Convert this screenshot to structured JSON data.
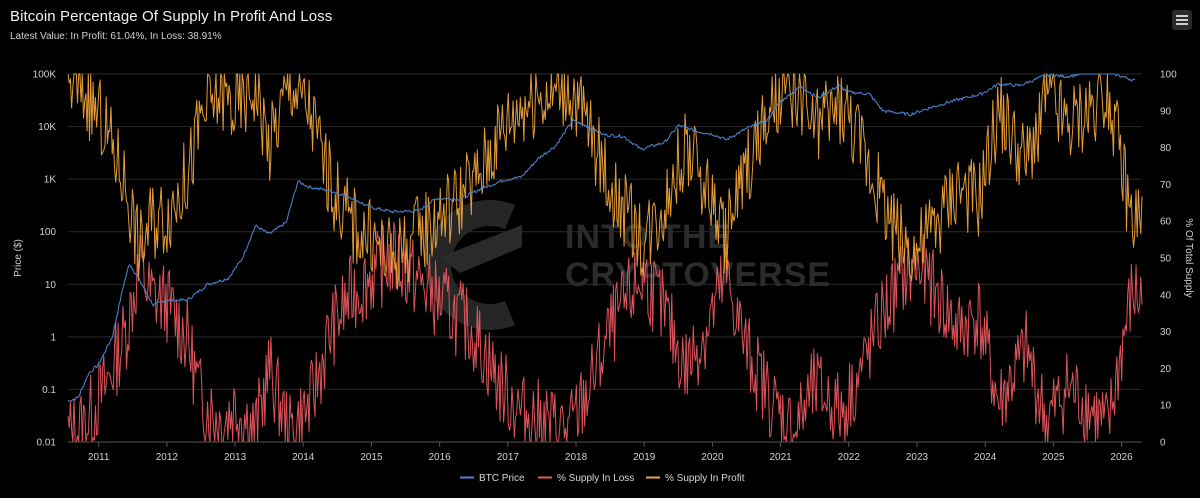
{
  "header": {
    "title": "Bitcoin Percentage Of Supply In Profit And Loss",
    "subtitle": "Latest Value: In Profit: 61.04%, In Loss: 38.91%"
  },
  "watermark": {
    "line1": "INTO THE",
    "line2": "CRYPTOVERSE"
  },
  "colors": {
    "background": "#000000",
    "grid": "#2a2a2a",
    "btc_price": "#4a86d4",
    "supply_in_loss": "#e8575f",
    "supply_in_profit": "#f0a33a"
  },
  "chart_data": {
    "type": "line",
    "title": "Bitcoin Percentage Of Supply In Profit And Loss",
    "subtitle": "Latest Value: In Profit: 61.04%, In Loss: 38.91%",
    "xlabel": "",
    "ylabel_left": "Price ($)",
    "ylabel_right": "% Of Total Supply",
    "x_ticks": [
      "2011",
      "2012",
      "2013",
      "2014",
      "2015",
      "2016",
      "2017",
      "2018",
      "2019",
      "2020",
      "2021",
      "2022",
      "2023",
      "2024",
      "2025",
      "2026"
    ],
    "x_range": [
      2010.55,
      2026.3
    ],
    "y_left": {
      "scale": "log",
      "range": [
        0.01,
        100000
      ],
      "ticks": [
        "0.01",
        "0.1",
        "1",
        "10",
        "100",
        "1K",
        "10K",
        "100K"
      ]
    },
    "y_right": {
      "scale": "linear",
      "range": [
        0,
        100
      ],
      "ticks": [
        "0",
        "10",
        "20",
        "30",
        "40",
        "50",
        "60",
        "70",
        "80",
        "90",
        "100"
      ]
    },
    "grid": true,
    "legend_position": "bottom-center",
    "series": [
      {
        "name": "BTC Price",
        "axis": "left",
        "x": [
          2010.55,
          2010.7,
          2010.85,
          2011.0,
          2011.2,
          2011.35,
          2011.45,
          2011.6,
          2011.8,
          2012.0,
          2012.3,
          2012.6,
          2012.9,
          2013.1,
          2013.3,
          2013.5,
          2013.75,
          2013.92,
          2014.1,
          2014.4,
          2014.7,
          2014.95,
          2015.3,
          2015.7,
          2015.95,
          2016.3,
          2016.6,
          2016.95,
          2017.2,
          2017.45,
          2017.7,
          2017.95,
          2018.1,
          2018.4,
          2018.7,
          2018.95,
          2019.3,
          2019.5,
          2019.8,
          2020.0,
          2020.2,
          2020.5,
          2020.8,
          2021.0,
          2021.3,
          2021.55,
          2021.85,
          2022.0,
          2022.3,
          2022.5,
          2022.9,
          2023.2,
          2023.5,
          2023.95,
          2024.2,
          2024.5,
          2024.9,
          2025.2,
          2025.5,
          2025.8,
          2026.0,
          2026.2
        ],
        "values": [
          0.06,
          0.07,
          0.2,
          0.3,
          1,
          8,
          25,
          12,
          4,
          5,
          5,
          10,
          13,
          30,
          130,
          90,
          150,
          900,
          700,
          600,
          450,
          300,
          240,
          250,
          430,
          420,
          650,
          970,
          1100,
          2500,
          4300,
          13000,
          11000,
          7000,
          6500,
          3700,
          5000,
          10500,
          8000,
          7200,
          5600,
          9200,
          13000,
          30000,
          58000,
          35000,
          60000,
          45000,
          42000,
          20000,
          17000,
          23000,
          30000,
          42000,
          65000,
          60000,
          95000,
          90000,
          105000,
          110000,
          90000,
          75000
        ]
      },
      {
        "name": "% Supply In Loss",
        "axis": "right",
        "x": [
          2010.55,
          2010.8,
          2011.1,
          2011.4,
          2011.6,
          2011.75,
          2012.0,
          2012.3,
          2012.5,
          2012.8,
          2013.0,
          2013.3,
          2013.5,
          2013.8,
          2014.1,
          2014.4,
          2014.7,
          2015.0,
          2015.3,
          2015.6,
          2015.9,
          2016.2,
          2016.5,
          2016.9,
          2017.2,
          2017.6,
          2017.9,
          2018.2,
          2018.5,
          2018.8,
          2019.0,
          2019.3,
          2019.6,
          2019.9,
          2020.2,
          2020.5,
          2020.9,
          2021.2,
          2021.5,
          2021.9,
          2022.2,
          2022.5,
          2022.8,
          2023.0,
          2023.3,
          2023.6,
          2023.9,
          2024.2,
          2024.6,
          2024.9,
          2025.2,
          2025.5,
          2025.8,
          2026.0,
          2026.15,
          2026.3
        ],
        "values": [
          2,
          5,
          15,
          30,
          48,
          40,
          38,
          28,
          12,
          5,
          10,
          3,
          20,
          2,
          10,
          30,
          40,
          45,
          50,
          45,
          40,
          35,
          30,
          15,
          8,
          5,
          3,
          15,
          30,
          40,
          45,
          35,
          20,
          30,
          45,
          25,
          10,
          3,
          15,
          8,
          20,
          35,
          45,
          48,
          40,
          30,
          35,
          10,
          25,
          5,
          15,
          10,
          3,
          25,
          40,
          39
        ]
      },
      {
        "name": "% Supply In Profit",
        "axis": "right",
        "x": [
          2010.55,
          2010.8,
          2011.1,
          2011.4,
          2011.6,
          2011.75,
          2012.0,
          2012.3,
          2012.5,
          2012.8,
          2013.0,
          2013.3,
          2013.5,
          2013.8,
          2014.1,
          2014.4,
          2014.7,
          2015.0,
          2015.3,
          2015.6,
          2015.9,
          2016.2,
          2016.5,
          2016.9,
          2017.2,
          2017.6,
          2017.9,
          2018.2,
          2018.5,
          2018.8,
          2019.0,
          2019.3,
          2019.6,
          2019.9,
          2020.2,
          2020.5,
          2020.9,
          2021.2,
          2021.5,
          2021.9,
          2022.2,
          2022.5,
          2022.8,
          2023.0,
          2023.3,
          2023.6,
          2023.9,
          2024.2,
          2024.6,
          2024.9,
          2025.2,
          2025.5,
          2025.8,
          2026.0,
          2026.15,
          2026.3
        ],
        "values": [
          98,
          95,
          85,
          70,
          52,
          60,
          62,
          72,
          88,
          95,
          90,
          97,
          80,
          98,
          90,
          70,
          60,
          55,
          50,
          55,
          60,
          65,
          70,
          85,
          92,
          95,
          97,
          85,
          70,
          60,
          55,
          65,
          80,
          70,
          55,
          75,
          90,
          97,
          85,
          92,
          80,
          65,
          55,
          52,
          60,
          70,
          65,
          90,
          75,
          95,
          85,
          90,
          97,
          75,
          60,
          61
        ]
      }
    ]
  }
}
